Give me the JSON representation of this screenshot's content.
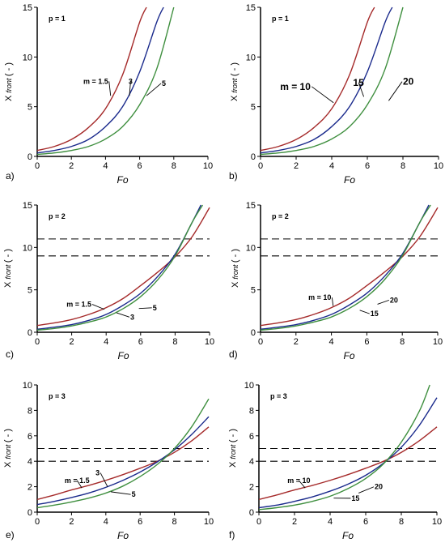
{
  "chart_data": [
    {
      "type": "line",
      "panel_label": "a)",
      "param_label": "p = 1",
      "xlabel": "Fo",
      "ylabel": "X",
      "ylabel_sub": "front",
      "ylabel_unit": "( - )",
      "xlim": [
        0,
        10
      ],
      "ylim": [
        0,
        15
      ],
      "xticks": [
        0,
        2,
        4,
        6,
        8,
        10
      ],
      "yticks": [
        0,
        5,
        10,
        15
      ],
      "reference_lines": [],
      "series": [
        {
          "name": "m = 1.5",
          "color": "#a52a2a",
          "x": [
            0,
            1,
            2,
            3,
            4,
            5,
            6,
            6.4
          ],
          "y": [
            0.6,
            1.0,
            1.7,
            2.9,
            4.8,
            8.2,
            13.5,
            15
          ]
        },
        {
          "name": "3",
          "color": "#1a2a8c",
          "x": [
            0,
            1,
            2,
            3,
            4,
            5,
            6,
            7,
            7.4
          ],
          "y": [
            0.35,
            0.6,
            1.0,
            1.7,
            3.0,
            5.0,
            8.5,
            13.5,
            15
          ]
        },
        {
          "name": "5",
          "color": "#3f8f3f",
          "x": [
            0,
            1,
            2,
            3,
            4,
            5,
            6,
            7,
            8
          ],
          "y": [
            0.2,
            0.35,
            0.6,
            1.0,
            1.75,
            3.0,
            5.2,
            8.8,
            15
          ]
        }
      ],
      "annotations": [
        {
          "text": "m = 1.5",
          "x": 2.7,
          "y": 7.3,
          "to": [
            4.3,
            6.1
          ]
        },
        {
          "text": "3",
          "x": 5.35,
          "y": 7.3,
          "to": [
            5.4,
            6.1
          ]
        },
        {
          "text": "5",
          "x": 7.3,
          "y": 7.1,
          "to": [
            6.4,
            6.1
          ]
        }
      ]
    },
    {
      "type": "line",
      "panel_label": "b)",
      "param_label": "p = 1",
      "xlabel": "Fo",
      "ylabel": "X",
      "ylabel_sub": "front",
      "ylabel_unit": "( - )",
      "xlim": [
        0,
        10
      ],
      "ylim": [
        0,
        15
      ],
      "xticks": [
        0,
        2,
        4,
        6,
        8,
        10
      ],
      "yticks": [
        0,
        5,
        10,
        15
      ],
      "reference_lines": [],
      "series": [
        {
          "name": "m = 10",
          "color": "#a52a2a",
          "x": [
            0,
            1,
            2,
            3,
            4,
            5,
            6,
            6.4
          ],
          "y": [
            0.6,
            1.0,
            1.7,
            2.9,
            4.8,
            8.2,
            13.5,
            15
          ]
        },
        {
          "name": "15",
          "color": "#1a2a8c",
          "x": [
            0,
            1,
            2,
            3,
            4,
            5,
            6,
            7,
            7.4
          ],
          "y": [
            0.35,
            0.6,
            1.0,
            1.7,
            3.0,
            5.0,
            8.5,
            13.5,
            15
          ]
        },
        {
          "name": "20",
          "color": "#3f8f3f",
          "x": [
            0,
            1,
            2,
            3,
            4,
            5,
            6,
            7,
            8
          ],
          "y": [
            0.2,
            0.35,
            0.6,
            1.0,
            1.75,
            3.0,
            5.2,
            8.8,
            15
          ]
        }
      ],
      "annotations": [
        {
          "text": "m = 10",
          "x": 1.1,
          "y": 6.7,
          "to": [
            4.1,
            5.4
          ]
        },
        {
          "text": "15",
          "x": 5.2,
          "y": 7.1,
          "to": [
            5.8,
            6.0
          ]
        },
        {
          "text": "20",
          "x": 8.0,
          "y": 7.2,
          "to": [
            7.2,
            5.6
          ]
        }
      ]
    },
    {
      "type": "line",
      "panel_label": "c)",
      "param_label": "p = 2",
      "xlabel": "Fo",
      "ylabel": "X",
      "ylabel_sub": "front",
      "ylabel_unit": "( - )",
      "xlim": [
        0,
        10
      ],
      "ylim": [
        0,
        15
      ],
      "xticks": [
        0,
        2,
        4,
        6,
        8,
        10
      ],
      "yticks": [
        0,
        5,
        10,
        15
      ],
      "reference_lines": [
        11,
        9
      ],
      "series": [
        {
          "name": "m = 1.5",
          "color": "#a52a2a",
          "x": [
            0,
            1,
            2,
            3,
            4,
            5,
            6,
            7,
            8,
            9,
            10
          ],
          "y": [
            0.8,
            1.1,
            1.5,
            2.1,
            2.9,
            4.0,
            5.5,
            7.1,
            8.9,
            11.3,
            14.7
          ]
        },
        {
          "name": "3",
          "color": "#1a2a8c",
          "x": [
            0,
            1,
            2,
            3,
            4,
            5,
            6,
            7,
            8,
            8.9,
            9.5
          ],
          "y": [
            0.35,
            0.6,
            0.9,
            1.4,
            2.1,
            3.2,
            4.6,
            6.6,
            9.2,
            12.6,
            15
          ]
        },
        {
          "name": "5",
          "color": "#3f8f3f",
          "x": [
            0,
            1,
            2,
            3,
            4,
            5,
            6,
            7,
            8,
            9,
            9.6
          ],
          "y": [
            0.25,
            0.45,
            0.75,
            1.2,
            1.8,
            2.8,
            4.2,
            6.2,
            9.0,
            13.0,
            15
          ]
        }
      ],
      "annotations": [
        {
          "text": "m = 1.5",
          "x": 1.7,
          "y": 3.0,
          "to": [
            3.9,
            2.7
          ]
        },
        {
          "text": "5",
          "x": 6.7,
          "y": 2.6,
          "to": [
            5.9,
            2.8
          ]
        },
        {
          "text": "3",
          "x": 5.4,
          "y": 1.5,
          "to": [
            4.6,
            2.3
          ]
        }
      ]
    },
    {
      "type": "line",
      "panel_label": "d)",
      "param_label": "p = 2",
      "xlabel": "Fo",
      "ylabel": "X",
      "ylabel_sub": "front",
      "ylabel_unit": "( - )",
      "xlim": [
        0,
        10
      ],
      "ylim": [
        0,
        15
      ],
      "xticks": [
        0,
        2,
        4,
        6,
        8,
        10
      ],
      "yticks": [
        0,
        5,
        10,
        15
      ],
      "reference_lines": [
        11,
        9
      ],
      "series": [
        {
          "name": "m = 10",
          "color": "#a52a2a",
          "x": [
            0,
            1,
            2,
            3,
            4,
            5,
            6,
            7,
            8,
            9,
            10
          ],
          "y": [
            0.8,
            1.1,
            1.5,
            2.1,
            2.9,
            4.0,
            5.5,
            7.1,
            8.9,
            11.3,
            14.7
          ]
        },
        {
          "name": "15",
          "color": "#1a2a8c",
          "x": [
            0,
            1,
            2,
            3,
            4,
            5,
            6,
            7,
            8,
            8.9,
            9.5
          ],
          "y": [
            0.35,
            0.6,
            0.9,
            1.4,
            2.1,
            3.2,
            4.6,
            6.6,
            9.2,
            12.6,
            15
          ]
        },
        {
          "name": "20",
          "color": "#3f8f3f",
          "x": [
            0,
            1,
            2,
            3,
            4,
            5,
            6,
            7,
            8,
            9,
            9.6
          ],
          "y": [
            0.25,
            0.45,
            0.75,
            1.2,
            1.8,
            2.8,
            4.2,
            6.2,
            9.0,
            13.0,
            15
          ]
        }
      ],
      "annotations": [
        {
          "text": "m = 10",
          "x": 2.7,
          "y": 3.8,
          "to": [
            4.1,
            3.1
          ]
        },
        {
          "text": "20",
          "x": 7.3,
          "y": 3.5,
          "to": [
            6.6,
            3.3
          ]
        },
        {
          "text": "15",
          "x": 6.2,
          "y": 1.9,
          "to": [
            5.6,
            2.6
          ]
        }
      ]
    },
    {
      "type": "line",
      "panel_label": "e)",
      "param_label": "p = 3",
      "xlabel": "Fo",
      "ylabel": "X",
      "ylabel_sub": "front",
      "ylabel_unit": "( - )",
      "xlim": [
        0,
        10
      ],
      "ylim": [
        0,
        10
      ],
      "xticks": [
        0,
        2,
        4,
        6,
        8,
        10
      ],
      "yticks": [
        0,
        2,
        4,
        6,
        8,
        10
      ],
      "reference_lines": [
        5,
        4
      ],
      "series": [
        {
          "name": "m = 1.5",
          "color": "#a52a2a",
          "x": [
            0,
            1,
            2,
            3,
            4,
            5,
            6,
            7,
            8,
            9,
            10
          ],
          "y": [
            1.0,
            1.35,
            1.75,
            2.1,
            2.5,
            2.95,
            3.45,
            4.0,
            4.7,
            5.6,
            6.7
          ]
        },
        {
          "name": "3",
          "color": "#1a2a8c",
          "x": [
            0,
            1,
            2,
            3,
            4,
            5,
            6,
            7,
            8,
            9,
            10
          ],
          "y": [
            0.6,
            0.85,
            1.15,
            1.5,
            1.95,
            2.5,
            3.15,
            3.95,
            4.9,
            6.1,
            7.5
          ]
        },
        {
          "name": "5",
          "color": "#3f8f3f",
          "x": [
            0,
            1,
            2,
            3,
            4,
            5,
            6,
            7,
            8,
            9,
            10
          ],
          "y": [
            0.35,
            0.55,
            0.8,
            1.1,
            1.5,
            2.05,
            2.8,
            3.75,
            5.0,
            6.7,
            8.9
          ]
        }
      ],
      "annotations": [
        {
          "text": "m = 1.5",
          "x": 1.6,
          "y": 2.3,
          "to": [
            2.6,
            1.9
          ]
        },
        {
          "text": "3",
          "x": 3.4,
          "y": 2.9,
          "to": [
            4.1,
            2.0
          ]
        },
        {
          "text": "5",
          "x": 5.5,
          "y": 1.2,
          "to": [
            4.3,
            1.6
          ]
        }
      ]
    },
    {
      "type": "line",
      "panel_label": "f)",
      "param_label": "p = 3",
      "xlabel": "Fo",
      "ylabel": "X",
      "ylabel_sub": "front",
      "ylabel_unit": "( - )",
      "xlim": [
        0,
        10
      ],
      "ylim": [
        0,
        10
      ],
      "xticks": [
        0,
        2,
        4,
        6,
        8,
        10
      ],
      "yticks": [
        0,
        2,
        4,
        6,
        8,
        10
      ],
      "reference_lines": [
        5,
        4
      ],
      "series": [
        {
          "name": "m = 10",
          "color": "#a52a2a",
          "x": [
            0,
            1,
            2,
            3,
            4,
            5,
            6,
            7,
            8,
            9,
            10
          ],
          "y": [
            1.0,
            1.35,
            1.75,
            2.1,
            2.5,
            2.95,
            3.45,
            4.0,
            4.7,
            5.6,
            6.7
          ]
        },
        {
          "name": "15",
          "color": "#1a2a8c",
          "x": [
            0,
            1,
            2,
            3,
            4,
            5,
            6,
            7,
            8,
            9,
            10
          ],
          "y": [
            0.35,
            0.55,
            0.85,
            1.2,
            1.65,
            2.2,
            2.9,
            3.85,
            5.1,
            6.8,
            9.0
          ]
        },
        {
          "name": "20",
          "color": "#3f8f3f",
          "x": [
            0,
            1,
            2,
            3,
            4,
            5,
            6,
            7,
            8,
            9,
            9.6
          ],
          "y": [
            0.2,
            0.35,
            0.55,
            0.85,
            1.25,
            1.85,
            2.65,
            3.8,
            5.5,
            7.9,
            10
          ]
        }
      ],
      "annotations": [
        {
          "text": "m = 10",
          "x": 1.6,
          "y": 2.3,
          "to": [
            2.6,
            1.9
          ]
        },
        {
          "text": "20",
          "x": 6.5,
          "y": 1.8,
          "to": [
            5.6,
            1.5
          ]
        },
        {
          "text": "15",
          "x": 5.2,
          "y": 0.9,
          "to": [
            4.2,
            1.1
          ]
        }
      ]
    }
  ]
}
